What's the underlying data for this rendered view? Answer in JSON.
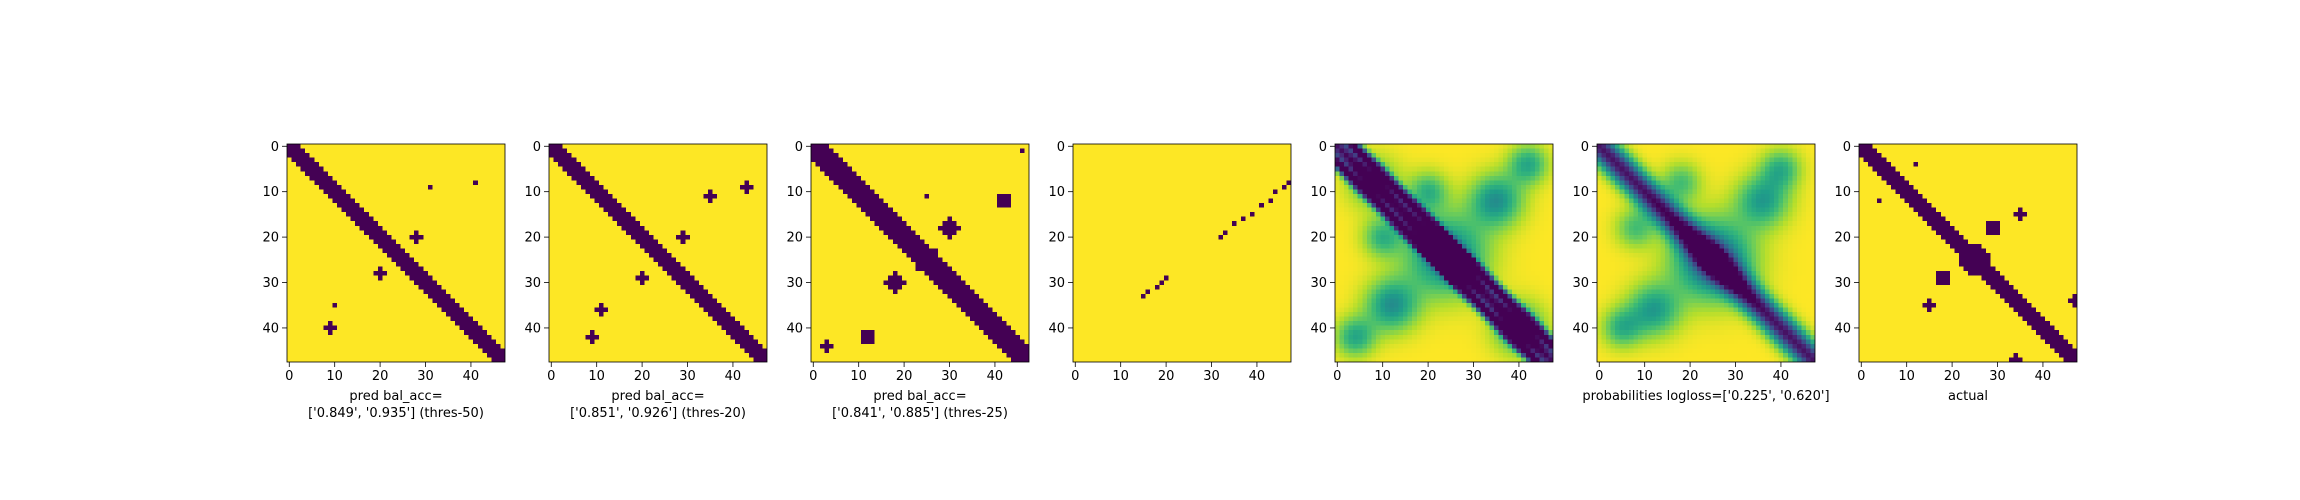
{
  "figure": {
    "panel_count": 7,
    "colors": {
      "low": "#440154",
      "high": "#fde725",
      "frame": "#000000",
      "text": "#000000"
    }
  },
  "chart_data": [
    {
      "type": "heatmap",
      "matrix_size": 48,
      "xticks": [
        0,
        10,
        20,
        30,
        40
      ],
      "yticks": [
        0,
        10,
        20,
        30,
        40
      ],
      "xlim": [
        -0.5,
        47.5
      ],
      "ylim": [
        47.5,
        -0.5
      ],
      "colormap": "viridis",
      "binary": true,
      "xlabel": [
        "pred bal_acc=",
        "['0.849', '0.935'] (thres-50)"
      ],
      "band_halfwidth": 2,
      "blobs": [
        [
          31,
          9,
          0.8
        ],
        [
          41,
          8,
          0.8
        ],
        [
          28,
          20,
          1.2
        ],
        [
          20,
          28,
          1.2
        ],
        [
          10,
          35,
          0.6
        ],
        [
          9,
          40,
          1.0
        ]
      ]
    },
    {
      "type": "heatmap",
      "matrix_size": 48,
      "xticks": [
        0,
        10,
        20,
        30,
        40
      ],
      "yticks": [
        0,
        10,
        20,
        30,
        40
      ],
      "xlim": [
        -0.5,
        47.5
      ],
      "ylim": [
        47.5,
        -0.5
      ],
      "colormap": "viridis",
      "binary": true,
      "xlabel": [
        "pred bal_acc=",
        "['0.851', '0.926'] (thres-20)"
      ],
      "band_halfwidth": 2.5,
      "blobs": [
        [
          35,
          11,
          1.2
        ],
        [
          43,
          9,
          1.4
        ],
        [
          29,
          20,
          1.2
        ],
        [
          20,
          29,
          1.2
        ],
        [
          11,
          36,
          1.0
        ],
        [
          9,
          42,
          1.4
        ]
      ]
    },
    {
      "type": "heatmap",
      "matrix_size": 48,
      "xticks": [
        0,
        10,
        20,
        30,
        40
      ],
      "yticks": [
        0,
        10,
        20,
        30,
        40
      ],
      "xlim": [
        -0.5,
        47.5
      ],
      "ylim": [
        47.5,
        -0.5
      ],
      "colormap": "viridis",
      "binary": true,
      "xlabel": [
        "pred bal_acc=",
        "['0.841', '0.885'] (thres-25)"
      ],
      "band_halfwidth": 3,
      "blobs": [
        [
          25,
          25,
          3.0
        ],
        [
          30,
          18,
          2.0
        ],
        [
          18,
          30,
          2.0
        ],
        [
          42,
          12,
          1.8
        ],
        [
          46,
          1,
          0.8
        ],
        [
          12,
          42,
          1.8
        ],
        [
          3,
          44,
          1.4
        ],
        [
          25,
          11,
          0.6
        ]
      ]
    },
    {
      "type": "heatmap",
      "matrix_size": 48,
      "xticks": [
        0,
        10,
        20,
        30,
        40
      ],
      "yticks": [
        0,
        10,
        20,
        30,
        40
      ],
      "xlim": [
        -0.5,
        47.5
      ],
      "ylim": [
        47.5,
        -0.5
      ],
      "colormap": "viridis",
      "binary": true,
      "xlabel": [],
      "sparse_offset": 28,
      "sparse_points": [
        [
          32,
          20
        ],
        [
          33,
          19
        ],
        [
          35,
          17
        ],
        [
          37,
          16
        ],
        [
          39,
          15
        ],
        [
          41,
          13
        ],
        [
          43,
          12
        ],
        [
          44,
          10
        ],
        [
          46,
          9
        ],
        [
          47,
          8
        ],
        [
          15,
          33
        ],
        [
          16,
          32
        ],
        [
          18,
          31
        ],
        [
          19,
          30
        ],
        [
          20,
          29
        ]
      ]
    },
    {
      "type": "heatmap",
      "matrix_size": 48,
      "xticks": [
        0,
        10,
        20,
        30,
        40
      ],
      "yticks": [
        0,
        10,
        20,
        30,
        40
      ],
      "xlim": [
        -0.5,
        47.5
      ],
      "ylim": [
        47.5,
        -0.5
      ],
      "colormap": "viridis",
      "binary": false,
      "xlabel": [],
      "contact_bands": [
        [
          0,
          2.2
        ],
        [
          4,
          1.0
        ],
        [
          -4,
          1.0
        ]
      ],
      "bumps": [
        [
          24,
          24,
          6,
          0.6
        ],
        [
          12,
          35,
          4,
          0.5
        ],
        [
          35,
          12,
          4,
          0.5
        ],
        [
          8,
          8,
          4,
          0.3
        ],
        [
          40,
          40,
          4,
          0.4
        ],
        [
          20,
          10,
          3,
          0.35
        ],
        [
          10,
          20,
          3,
          0.35
        ],
        [
          42,
          4,
          3,
          0.4
        ],
        [
          4,
          42,
          3,
          0.4
        ]
      ]
    },
    {
      "type": "heatmap",
      "matrix_size": 48,
      "xticks": [
        0,
        10,
        20,
        30,
        40
      ],
      "yticks": [
        0,
        10,
        20,
        30,
        40
      ],
      "xlim": [
        -0.5,
        47.5
      ],
      "ylim": [
        47.5,
        -0.5
      ],
      "colormap": "viridis",
      "binary": false,
      "xlabel": [
        "probabilities logloss=['0.225', '0.620']"
      ],
      "contact_bands": [
        [
          0,
          3.0
        ]
      ],
      "bumps": [
        [
          25,
          25,
          6,
          0.7
        ],
        [
          12,
          36,
          4,
          0.45
        ],
        [
          36,
          12,
          4,
          0.45
        ],
        [
          40,
          5,
          3,
          0.35
        ],
        [
          5,
          40,
          3,
          0.35
        ],
        [
          18,
          8,
          3,
          0.3
        ],
        [
          8,
          18,
          3,
          0.3
        ]
      ]
    },
    {
      "type": "heatmap",
      "matrix_size": 48,
      "xticks": [
        0,
        10,
        20,
        30,
        40
      ],
      "yticks": [
        0,
        10,
        20,
        30,
        40
      ],
      "xlim": [
        -0.5,
        47.5
      ],
      "ylim": [
        47.5,
        -0.5
      ],
      "colormap": "viridis",
      "binary": true,
      "xlabel": [
        "actual"
      ],
      "band_halfwidth": 2,
      "blobs": [
        [
          25,
          25,
          3.2
        ],
        [
          29,
          18,
          1.5
        ],
        [
          18,
          29,
          1.5
        ],
        [
          35,
          15,
          1.0
        ],
        [
          15,
          35,
          1.0
        ],
        [
          47,
          34,
          1.2
        ],
        [
          34,
          47,
          1.2
        ],
        [
          12,
          4,
          0.6
        ],
        [
          4,
          12,
          0.6
        ]
      ]
    }
  ]
}
